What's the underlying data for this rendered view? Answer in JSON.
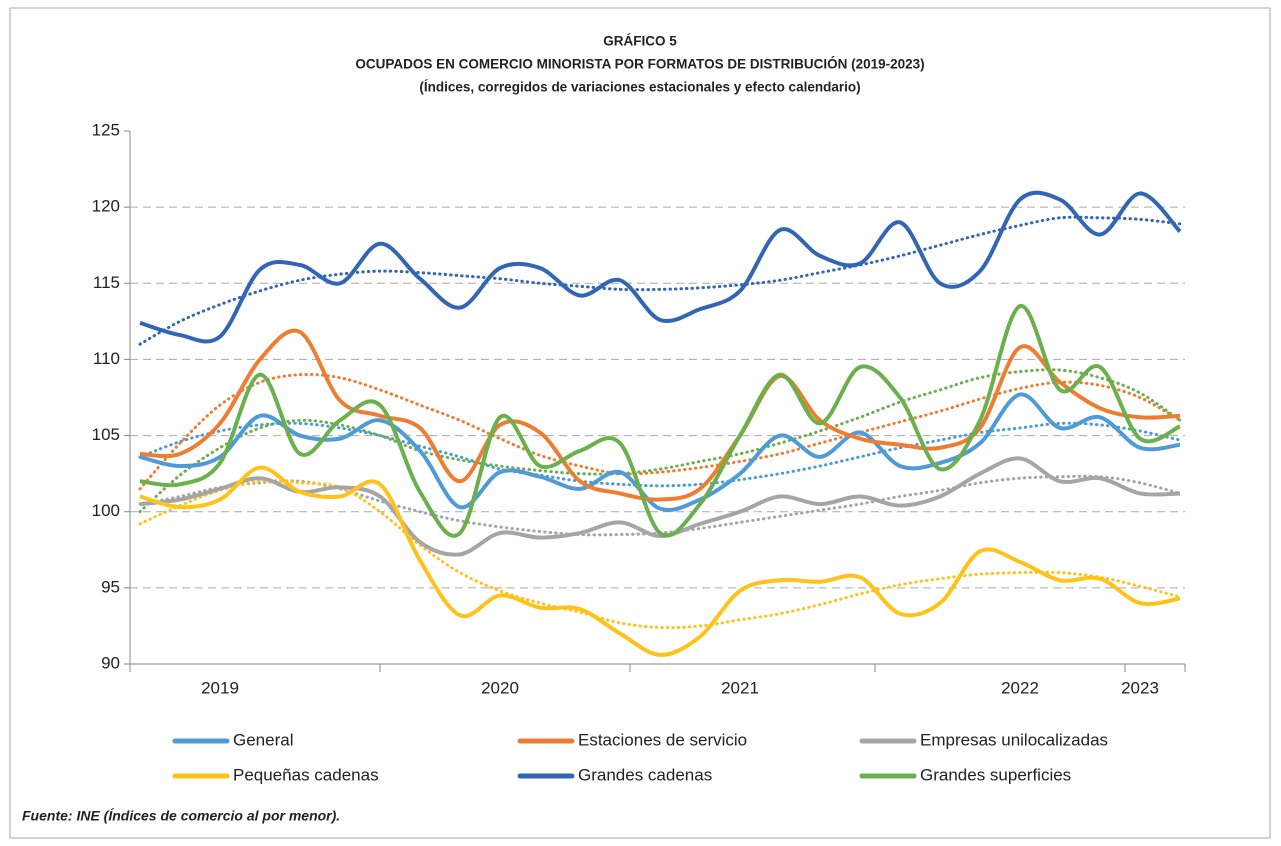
{
  "chart_data": {
    "type": "line",
    "title": "GRÁFICO 5",
    "subtitle": "OCUPADOS EN COMERCIO MINORISTA POR FORMATOS DE DISTRIBUCIÓN (2019-2023)",
    "subtitle2": "(Índices, corregidos de variaciones estacionales y efecto calendario)",
    "source": "Fuente: INE (Índices de comercio al por menor).",
    "categories": [
      null,
      null,
      "2019",
      null,
      null,
      null,
      null,
      null,
      null,
      "2020",
      null,
      null,
      null,
      null,
      null,
      "2021",
      null,
      null,
      null,
      null,
      null,
      null,
      "2022",
      null,
      null,
      "2023",
      null
    ],
    "ylim": [
      90,
      125
    ],
    "yticks": [
      90,
      95,
      100,
      105,
      110,
      115,
      120,
      125
    ],
    "grid": true,
    "series": [
      {
        "name": "General",
        "color": "#4e9bd8",
        "values": [
          103.6,
          103.0,
          103.6,
          106.3,
          105.0,
          104.8,
          106.0,
          104.0,
          100.3,
          102.6,
          102.3,
          101.5,
          102.6,
          100.2,
          100.8,
          102.5,
          105.0,
          103.6,
          105.2,
          103.0,
          103.2,
          104.5,
          107.7,
          105.5,
          106.2,
          104.2,
          104.4
        ],
        "trend": [
          103.6,
          104.6,
          105.3,
          105.7,
          105.8,
          105.5,
          105.0,
          104.3,
          103.6,
          102.8,
          102.4,
          102.0,
          101.8,
          101.7,
          101.8,
          102.1,
          102.5,
          103.0,
          103.6,
          104.2,
          104.7,
          105.2,
          105.5,
          105.8,
          105.7,
          105.3,
          104.7
        ]
      },
      {
        "name": "Estaciones de servicio",
        "color": "#ed7d31",
        "values": [
          103.8,
          103.8,
          105.8,
          110.0,
          111.8,
          107.3,
          106.3,
          105.5,
          102.0,
          105.7,
          105.2,
          102.0,
          101.2,
          100.8,
          101.5,
          105.0,
          108.9,
          106.0,
          104.8,
          104.4,
          104.2,
          105.5,
          110.8,
          108.5,
          106.8,
          106.2,
          106.3
        ],
        "trend": [
          101.5,
          104.5,
          107.0,
          108.5,
          109.0,
          108.8,
          108.0,
          107.0,
          106.0,
          104.8,
          103.7,
          103.0,
          102.5,
          102.6,
          102.9,
          103.3,
          103.8,
          104.5,
          105.2,
          105.9,
          106.6,
          107.4,
          108.1,
          108.5,
          108.3,
          107.5,
          106.0
        ]
      },
      {
        "name": "Empresas unilocalizadas",
        "color": "#a5a5a5",
        "values": [
          100.5,
          100.8,
          101.5,
          102.2,
          101.3,
          101.6,
          101.0,
          98.0,
          97.2,
          98.6,
          98.3,
          98.6,
          99.3,
          98.4,
          99.2,
          100.0,
          101.0,
          100.5,
          101.0,
          100.4,
          101.0,
          102.5,
          103.5,
          102.0,
          102.2,
          101.2,
          101.2
        ],
        "trend": [
          100.5,
          101.0,
          101.6,
          101.9,
          102.0,
          101.5,
          100.7,
          100.0,
          99.4,
          99.0,
          98.7,
          98.5,
          98.5,
          98.6,
          98.9,
          99.3,
          99.7,
          100.1,
          100.5,
          101.0,
          101.4,
          101.9,
          102.2,
          102.3,
          102.3,
          101.9,
          101.2
        ]
      },
      {
        "name": "Pequeñas cadenas",
        "color": "#ffc21a",
        "values": [
          101.0,
          100.3,
          100.8,
          102.9,
          101.3,
          101.0,
          101.8,
          96.8,
          93.2,
          94.5,
          93.7,
          93.6,
          92.0,
          90.6,
          91.8,
          94.8,
          95.5,
          95.4,
          95.7,
          93.3,
          94.0,
          97.4,
          96.7,
          95.5,
          95.6,
          94.0,
          94.3
        ],
        "trend": [
          99.2,
          100.4,
          101.4,
          102.0,
          101.9,
          101.6,
          100.0,
          97.8,
          96.0,
          94.8,
          94.0,
          93.4,
          92.7,
          92.4,
          92.5,
          92.9,
          93.3,
          93.9,
          94.6,
          95.2,
          95.6,
          95.9,
          96.0,
          96.0,
          95.7,
          95.1,
          94.4
        ]
      },
      {
        "name": "Grandes cadenas",
        "color": "#3266b4",
        "values": [
          112.4,
          111.6,
          111.5,
          115.9,
          116.2,
          115.0,
          117.6,
          115.3,
          113.4,
          116.0,
          116.0,
          114.2,
          115.2,
          112.6,
          113.3,
          114.5,
          118.5,
          116.8,
          116.3,
          119.0,
          115.0,
          115.8,
          120.5,
          120.5,
          118.2,
          120.9,
          118.4
        ],
        "trend": [
          111.0,
          112.5,
          113.6,
          114.5,
          115.2,
          115.6,
          115.8,
          115.7,
          115.5,
          115.3,
          115.0,
          114.8,
          114.6,
          114.6,
          114.7,
          114.9,
          115.2,
          115.7,
          116.2,
          116.8,
          117.5,
          118.2,
          118.8,
          119.3,
          119.3,
          119.2,
          118.9
        ]
      },
      {
        "name": "Grandes superficies",
        "color": "#6ab04c",
        "values": [
          102.0,
          101.8,
          103.2,
          109.0,
          103.8,
          106.0,
          107.0,
          101.3,
          98.6,
          106.2,
          103.0,
          104.0,
          104.5,
          98.6,
          100.5,
          105.0,
          109.0,
          105.8,
          109.5,
          107.5,
          102.8,
          106.0,
          113.5,
          108.0,
          109.5,
          104.8,
          105.6
        ],
        "trend": [
          100.0,
          102.4,
          104.2,
          105.5,
          106.0,
          105.7,
          105.0,
          104.0,
          103.4,
          103.0,
          102.7,
          102.5,
          102.5,
          102.8,
          103.3,
          103.8,
          104.5,
          105.3,
          106.2,
          107.2,
          108.0,
          108.8,
          109.2,
          109.3,
          108.8,
          107.8,
          106.0
        ]
      }
    ]
  }
}
